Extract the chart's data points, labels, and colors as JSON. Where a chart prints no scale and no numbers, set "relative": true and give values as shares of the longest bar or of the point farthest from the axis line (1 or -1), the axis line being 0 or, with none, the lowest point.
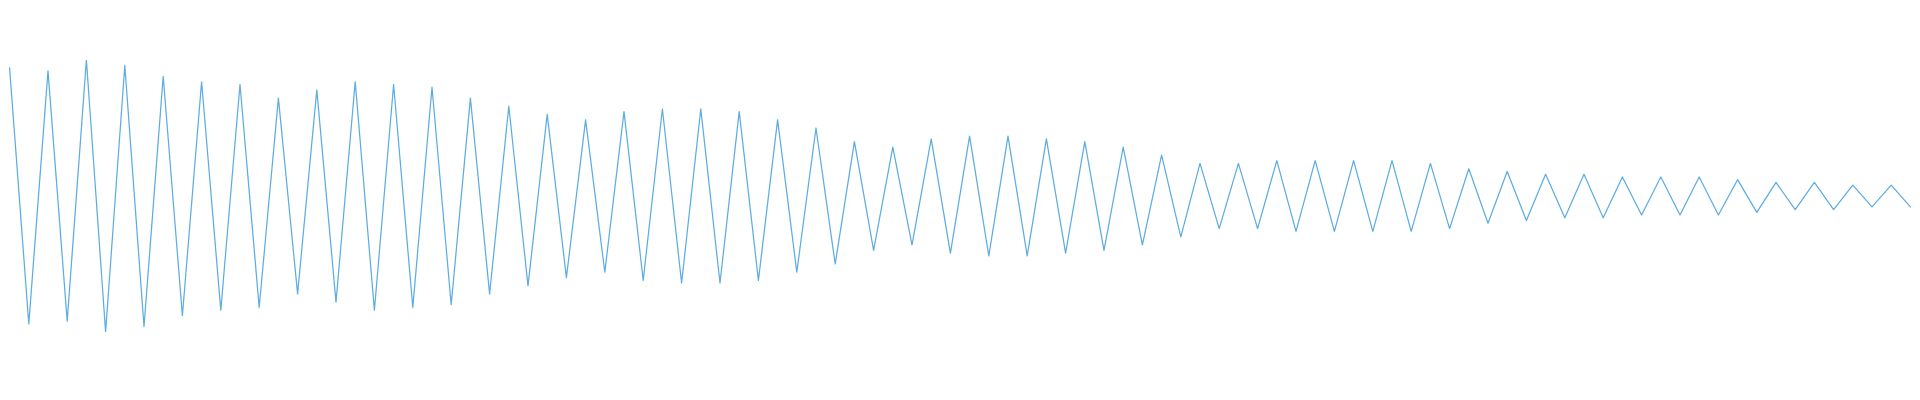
{
  "chart_data": {
    "type": "line",
    "relative": true,
    "tick_labels": false,
    "legend": false,
    "marker": "none",
    "line_style": "solid",
    "categories": [
      null,
      null,
      null,
      null,
      null,
      null,
      null,
      null,
      null,
      null,
      null,
      null,
      null,
      null,
      null,
      null,
      null,
      null,
      null,
      null,
      null,
      null,
      null,
      null,
      null,
      null,
      null,
      null,
      null,
      null,
      null,
      null,
      null,
      null,
      null,
      null,
      null,
      null,
      null,
      null,
      null,
      null,
      null,
      null,
      null,
      null,
      null,
      null,
      null,
      null,
      null,
      null,
      null,
      null,
      null,
      null,
      null,
      null,
      null,
      null,
      null,
      null,
      null,
      null,
      null,
      null,
      null,
      null,
      null,
      null,
      null,
      null,
      null,
      null,
      null,
      null,
      null,
      null,
      null,
      null,
      null,
      null,
      null,
      null,
      null,
      null,
      null,
      null,
      null,
      null,
      null,
      null,
      null,
      null,
      null,
      null,
      null,
      null,
      null,
      null
    ],
    "series": [
      {
        "color": "#5dade2",
        "values": [
          0.97,
          0.03,
          0.96,
          0.04,
          1.0,
          0.0,
          0.98,
          0.02,
          0.94,
          0.06,
          0.92,
          0.08,
          0.91,
          0.09,
          0.86,
          0.14,
          0.89,
          0.11,
          0.92,
          0.08,
          0.91,
          0.09,
          0.9,
          0.1,
          0.86,
          0.14,
          0.83,
          0.17,
          0.8,
          0.2,
          0.78,
          0.22,
          0.81,
          0.19,
          0.82,
          0.18,
          0.82,
          0.18,
          0.81,
          0.19,
          0.78,
          0.22,
          0.75,
          0.25,
          0.7,
          0.3,
          0.68,
          0.32,
          0.71,
          0.29,
          0.72,
          0.28,
          0.72,
          0.28,
          0.71,
          0.29,
          0.7,
          0.3,
          0.68,
          0.32,
          0.65,
          0.35,
          0.62,
          0.38,
          0.62,
          0.38,
          0.63,
          0.37,
          0.63,
          0.37,
          0.63,
          0.37,
          0.63,
          0.37,
          0.62,
          0.38,
          0.6,
          0.4,
          0.59,
          0.41,
          0.58,
          0.42,
          0.58,
          0.42,
          0.57,
          0.43,
          0.57,
          0.43,
          0.57,
          0.43,
          0.56,
          0.44,
          0.55,
          0.45,
          0.55,
          0.45,
          0.54,
          0.46,
          0.54,
          0.46
        ]
      }
    ]
  }
}
